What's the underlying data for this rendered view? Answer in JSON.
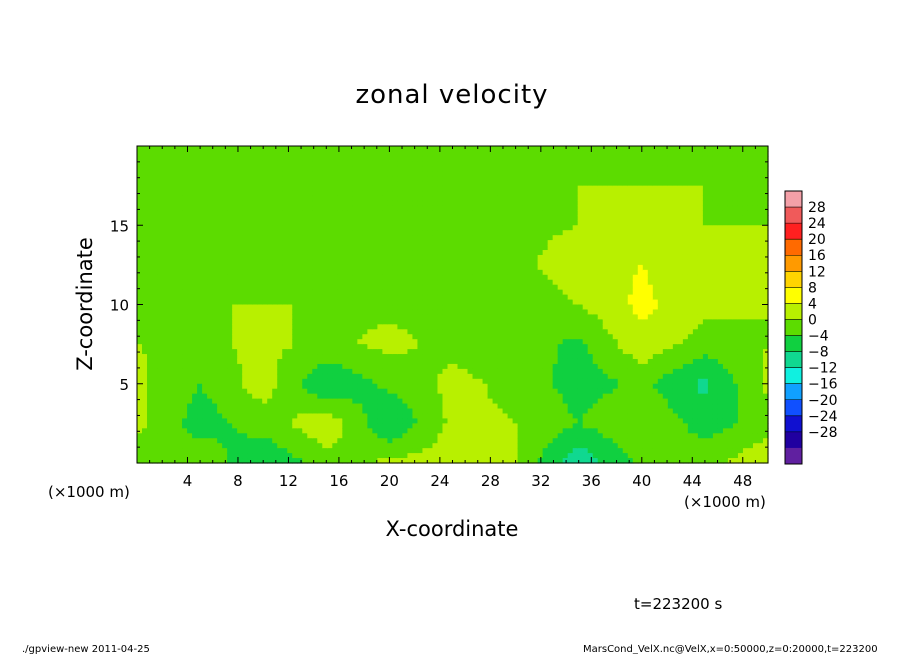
{
  "chart_data": {
    "type": "heatmap",
    "title": "zonal velocity",
    "xlabel": "X-coordinate",
    "ylabel": "Z-coordinate",
    "x_unit": "(×1000 m)",
    "x_unit_right": "(×1000 m)",
    "xlim": [
      0,
      50
    ],
    "ylim": [
      0,
      20
    ],
    "x_ticks": [
      "4",
      "8",
      "12",
      "16",
      "20",
      "24",
      "28",
      "32",
      "36",
      "40",
      "44",
      "48"
    ],
    "y_ticks": [
      "5",
      "10",
      "15"
    ],
    "x_tick_values": [
      4,
      8,
      12,
      16,
      20,
      24,
      28,
      32,
      36,
      40,
      44,
      48
    ],
    "y_tick_values": [
      5,
      10,
      15
    ],
    "colorbar": {
      "labels": [
        "28",
        "24",
        "20",
        "16",
        "12",
        "8",
        "4",
        "0",
        "−4",
        "−8",
        "−12",
        "−16",
        "−20",
        "−24",
        "−28"
      ],
      "levels": [
        32,
        28,
        24,
        20,
        16,
        12,
        8,
        4,
        0,
        -4,
        -8,
        -12,
        -16,
        -20,
        -24,
        -28,
        -32
      ],
      "colors": [
        "#f4a0a8",
        "#f05a5a",
        "#ff2020",
        "#ff6a00",
        "#ff9a00",
        "#ffd400",
        "#ffff00",
        "#b8f000",
        "#5cdc00",
        "#10d040",
        "#10d890",
        "#10f0e0",
        "#10a0ff",
        "#1050ff",
        "#1010d0",
        "#2000a0",
        "#6020a0"
      ]
    },
    "x_grid": [
      0,
      5,
      10,
      15,
      20,
      25,
      30,
      35,
      40,
      45,
      50
    ],
    "z_grid": [
      0,
      2.5,
      5,
      7.5,
      10,
      12.5,
      15,
      17.5,
      20
    ],
    "values": [
      [
        -2,
        -1,
        -8,
        -2,
        1,
        2,
        0,
        -11,
        -3,
        -1,
        3
      ],
      [
        1,
        -6,
        -2,
        3,
        -8,
        1,
        0,
        -4,
        0,
        -6,
        -2
      ],
      [
        1,
        -4,
        2,
        -8,
        -3,
        1,
        -1,
        -6,
        -3,
        -9,
        1
      ],
      [
        0,
        -1,
        1,
        -1,
        1,
        -1,
        -2,
        -5,
        3,
        -2,
        0
      ],
      [
        0,
        0,
        0,
        0,
        -1,
        -1,
        -2,
        0,
        5,
        1,
        0
      ],
      [
        0,
        0,
        -1,
        -1,
        -1,
        -1,
        -1,
        2,
        4,
        1,
        0
      ],
      [
        0,
        0,
        -1,
        -1,
        -1,
        -1,
        -1,
        0,
        1,
        0,
        0
      ],
      [
        0,
        0,
        0,
        0,
        0,
        0,
        0,
        0,
        0,
        0,
        0
      ],
      [
        0,
        0,
        0,
        0,
        0,
        0,
        0,
        0,
        0,
        0,
        0
      ]
    ]
  },
  "annotations": {
    "time": "t=223200 s",
    "footer_left": "./gpview-new  2011-04-25",
    "footer_right": "MarsCond_VelX.nc@VelX,x=0:50000,z=0:20000,t=223200"
  }
}
